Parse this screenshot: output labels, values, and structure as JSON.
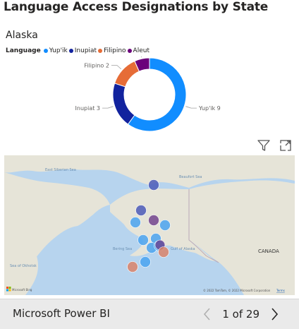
{
  "page": {
    "title": "Language Access Designations by State"
  },
  "visual": {
    "title": "Alaska"
  },
  "legend": {
    "title": "Language",
    "entries": [
      {
        "label": "Yup'ik",
        "color": "#118dff"
      },
      {
        "label": "Inupiat",
        "color": "#12239e"
      },
      {
        "label": "Filipino",
        "color": "#e66c37"
      },
      {
        "label": "Aleut",
        "color": "#6b007b"
      }
    ]
  },
  "chart_data": {
    "type": "donut",
    "title": "Alaska",
    "legend_title": "Language",
    "legend_position": "top-left",
    "slices": [
      {
        "label": "Yup'ik",
        "value": 9,
        "color": "#118dff",
        "data_label": "Yup'ik 9"
      },
      {
        "label": "Inupiat",
        "value": 3,
        "color": "#12239e",
        "data_label": "Inupiat 3"
      },
      {
        "label": "Filipino",
        "value": 2,
        "color": "#e66c37",
        "data_label": "Filipino 2"
      },
      {
        "label": "Aleut",
        "value": 1,
        "color": "#6b007b",
        "data_label": "Aleut 1"
      }
    ]
  },
  "visual_header": {
    "icons": [
      "filter-icon",
      "focus-mode-icon"
    ]
  },
  "map": {
    "labels": {
      "sea_top_left": "East Siberian Sea",
      "beaufort": "Beaufort Sea",
      "bering": "Bering Sea",
      "gulf": "Gulf of Alaska",
      "canada": "CANADA",
      "okhotsk": "Sea of Okhotsk"
    },
    "attribution": "© 2022 TomTom, © 2022 Microsoft Corporation",
    "terms": "Terms",
    "logo_text": "Microsoft Bing",
    "bubble_colors": {
      "inupiat": "#4b5bb8",
      "aleut": "#6b3a8a",
      "yupik": "#4aa3f0",
      "filipino": "#d9826a"
    }
  },
  "footer": {
    "brand": "Microsoft Power BI",
    "page_indicator": "1 of 29",
    "prev_icon": "chevron-left-icon",
    "next_icon": "chevron-right-icon"
  }
}
